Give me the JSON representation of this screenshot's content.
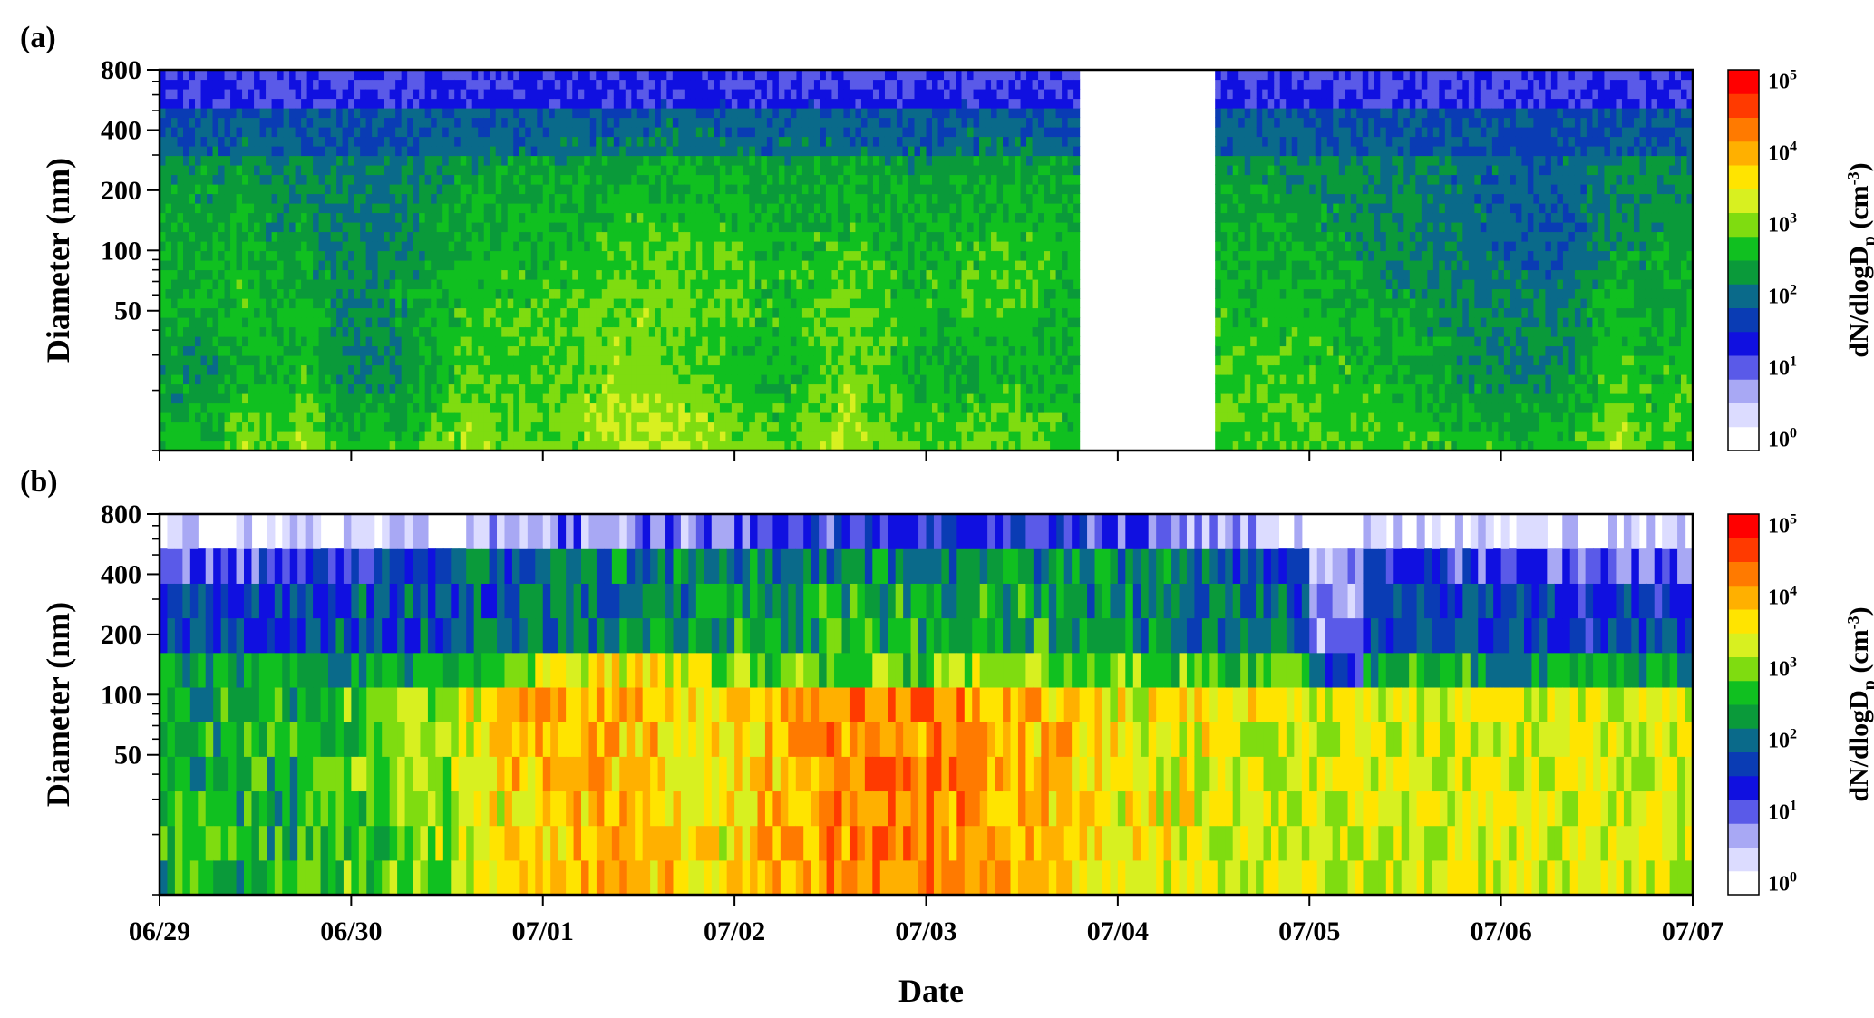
{
  "chart_data": [
    {
      "panel": "(a)",
      "type": "heatmap",
      "title": "",
      "xlabel": "",
      "ylabel": "Diameter (nm)",
      "y_scale": "log",
      "ylim": [
        10,
        800
      ],
      "yticks": [
        {
          "value": 800,
          "label": "800"
        },
        {
          "value": 400,
          "label": "400"
        },
        {
          "value": 200,
          "label": "200"
        },
        {
          "value": 100,
          "label": "100"
        },
        {
          "value": 50,
          "label": "50"
        }
      ],
      "x_range_days": [
        0,
        8
      ],
      "xticks": [
        "06/29",
        "06/30",
        "07/01",
        "07/02",
        "07/03",
        "07/04",
        "07/05",
        "07/06",
        "07/07"
      ],
      "missing_data": [
        [
          4.8,
          5.5
        ]
      ],
      "colorbar": {
        "label_main": "dN/dlogD",
        "label_sub": "p",
        "label_unit": "(cm",
        "label_unit_sup": "-3",
        "label_close": ")",
        "scale": "log",
        "range": [
          1,
          100000
        ],
        "ticks": [
          {
            "exp": 0,
            "base": "10",
            "sup": "0"
          },
          {
            "exp": 1,
            "base": "10",
            "sup": "1"
          },
          {
            "exp": 2,
            "base": "10",
            "sup": "2"
          },
          {
            "exp": 3,
            "base": "10",
            "sup": "3"
          },
          {
            "exp": 4,
            "base": "10",
            "sup": "4"
          },
          {
            "exp": 5,
            "base": "10",
            "sup": "5"
          }
        ]
      }
    },
    {
      "panel": "(b)",
      "type": "heatmap",
      "title": "",
      "xlabel": "Date",
      "ylabel": "Diameter (nm)",
      "y_scale": "log",
      "ylim": [
        10,
        800
      ],
      "yticks": [
        {
          "value": 800,
          "label": "800"
        },
        {
          "value": 400,
          "label": "400"
        },
        {
          "value": 200,
          "label": "200"
        },
        {
          "value": 100,
          "label": "100"
        },
        {
          "value": 50,
          "label": "50"
        }
      ],
      "x_range_days": [
        0,
        8
      ],
      "xticks": [
        "06/29",
        "06/30",
        "07/01",
        "07/02",
        "07/03",
        "07/04",
        "07/05",
        "07/06",
        "07/07"
      ],
      "colorbar": {
        "label_main": "dN/dlogD",
        "label_sub": "p",
        "label_unit": "(cm",
        "label_unit_sup": "-3",
        "label_close": ")",
        "scale": "log",
        "range": [
          1,
          100000
        ],
        "ticks": [
          {
            "exp": 0,
            "base": "10",
            "sup": "0"
          },
          {
            "exp": 1,
            "base": "10",
            "sup": "1"
          },
          {
            "exp": 2,
            "base": "10",
            "sup": "2"
          },
          {
            "exp": 3,
            "base": "10",
            "sup": "3"
          },
          {
            "exp": 4,
            "base": "10",
            "sup": "4"
          },
          {
            "exp": 5,
            "base": "10",
            "sup": "5"
          }
        ]
      }
    }
  ],
  "colors": {
    "scale": [
      "#ffffff",
      "#dcdcff",
      "#a8a8f4",
      "#5a5ae8",
      "#1010e0",
      "#0a3cb4",
      "#0a6a8a",
      "#0a9a3a",
      "#10c020",
      "#7fdc10",
      "#d8f020",
      "#ffe400",
      "#ffb000",
      "#ff7a00",
      "#ff3a00",
      "#ff0000"
    ]
  }
}
